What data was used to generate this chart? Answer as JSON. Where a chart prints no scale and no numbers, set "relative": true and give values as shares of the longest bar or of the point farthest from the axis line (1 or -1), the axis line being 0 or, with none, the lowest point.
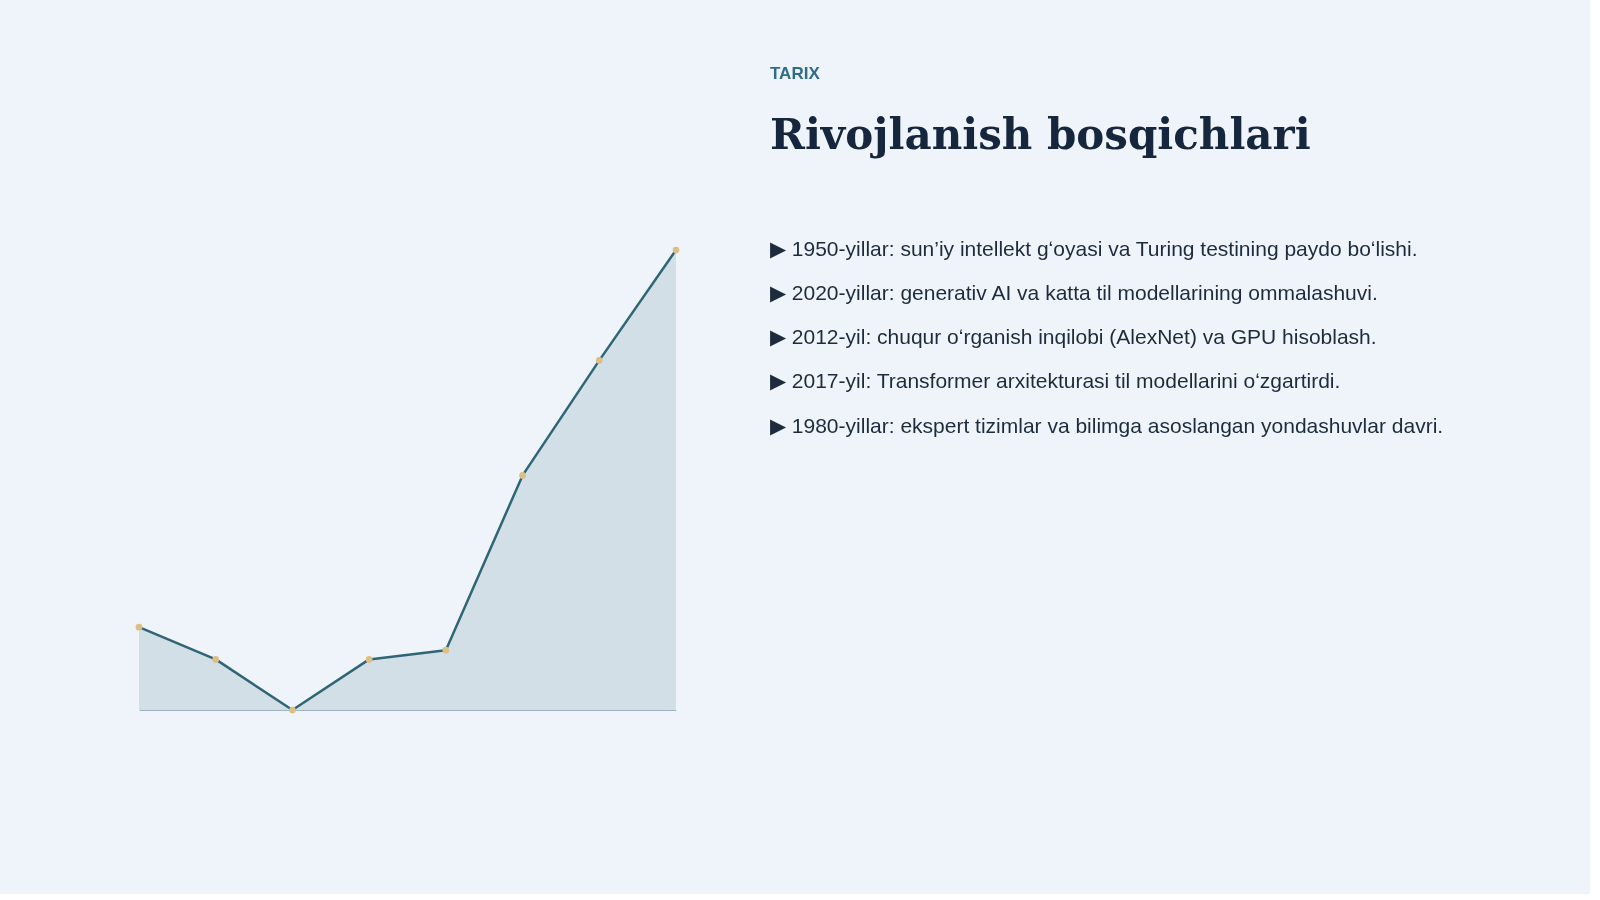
{
  "chart_data": {
    "type": "area",
    "subtitle": "TARIX",
    "title": "Rivojlanish bosqichlari",
    "categories": [
      null,
      null,
      null,
      null,
      null,
      null,
      null,
      null
    ],
    "relative": true,
    "series": [
      {
        "color": "#2f6676",
        "values": [
          0.18,
          0.11,
          0,
          0.11,
          0.13,
          0.51,
          0.76,
          1
        ]
      }
    ],
    "marker": "circle",
    "grid": false,
    "annotations": [
      "▶  1950-yillar: sun’iy intellekt gʻoyasi va Turing testining paydo boʻlishi.",
      "▶  2020-yillar: generativ AI va katta til modellarining ommalashuvi.",
      "▶  2012-yil: chuqur oʻrganish inqilobi (AlexNet) va GPU hisoblash.",
      "▶  2017-yil: Transformer arxitekturasi til modellarini oʻzgartirdi.",
      "▶  1980-yillar: ekspert tizimlar va bilimga asoslangan yondashuvlar davri."
    ]
  }
}
